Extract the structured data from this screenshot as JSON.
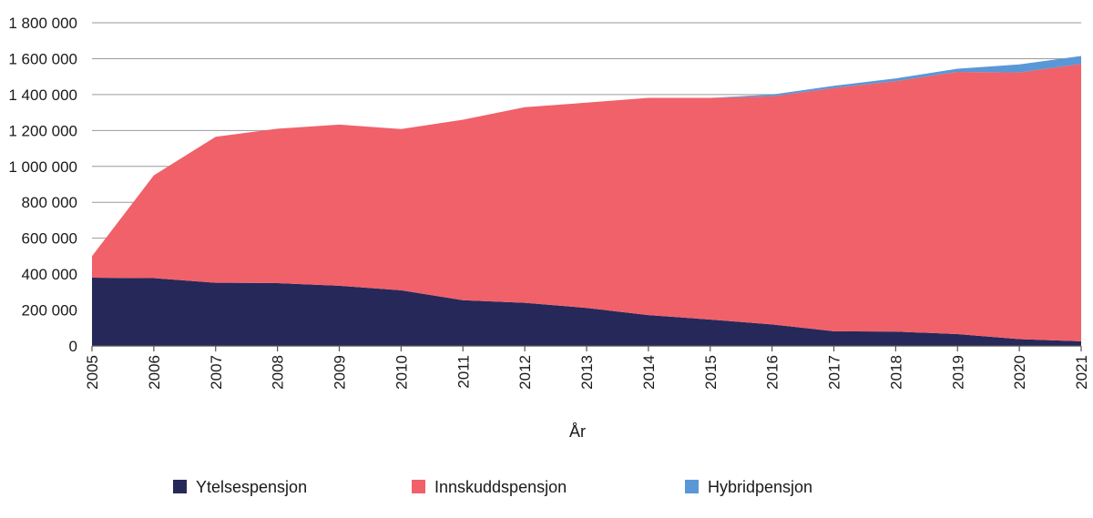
{
  "chart_data": {
    "type": "area",
    "stacked": true,
    "x": [
      2005,
      2006,
      2007,
      2008,
      2009,
      2010,
      2011,
      2012,
      2013,
      2014,
      2015,
      2016,
      2017,
      2018,
      2019,
      2020,
      2021
    ],
    "x_tick_labels": [
      "2005",
      "2006",
      "2007",
      "2008",
      "2009",
      "2010",
      "2011",
      "2012",
      "2013",
      "2014",
      "2015",
      "2016",
      "2017",
      "2018",
      "2019",
      "2020",
      "2021"
    ],
    "series": [
      {
        "name": "Ytelsespensjon",
        "color": "#262859",
        "values": [
          380000,
          378000,
          352000,
          350000,
          335000,
          310000,
          255000,
          240000,
          212000,
          172000,
          147000,
          120000,
          82000,
          80000,
          66000,
          38000,
          26000
        ]
      },
      {
        "name": "Innskuddspensjon",
        "color": "#f0616a",
        "values": [
          120000,
          572000,
          813000,
          860000,
          898000,
          898000,
          1005000,
          1090000,
          1143000,
          1210000,
          1235000,
          1270000,
          1355000,
          1395000,
          1460000,
          1485000,
          1545000
        ]
      },
      {
        "name": "Hybridpensjon",
        "color": "#5a97d6",
        "values": [
          0,
          0,
          0,
          0,
          0,
          0,
          0,
          0,
          0,
          0,
          0,
          10000,
          12000,
          15000,
          18000,
          45000,
          44000
        ]
      }
    ],
    "ylim": [
      0,
      1800000
    ],
    "y_ticks": [
      0,
      200000,
      400000,
      600000,
      800000,
      1000000,
      1200000,
      1400000,
      1600000,
      1800000
    ],
    "y_tick_labels": [
      "0",
      "200 000",
      "400 000",
      "600 000",
      "800 000",
      "1 000 000",
      "1 200 000",
      "1 400 000",
      "1 600 000",
      "1 800 000"
    ],
    "xlabel": "År",
    "ylabel": "",
    "title": "",
    "grid": "horizontal",
    "legend_position": "bottom"
  }
}
